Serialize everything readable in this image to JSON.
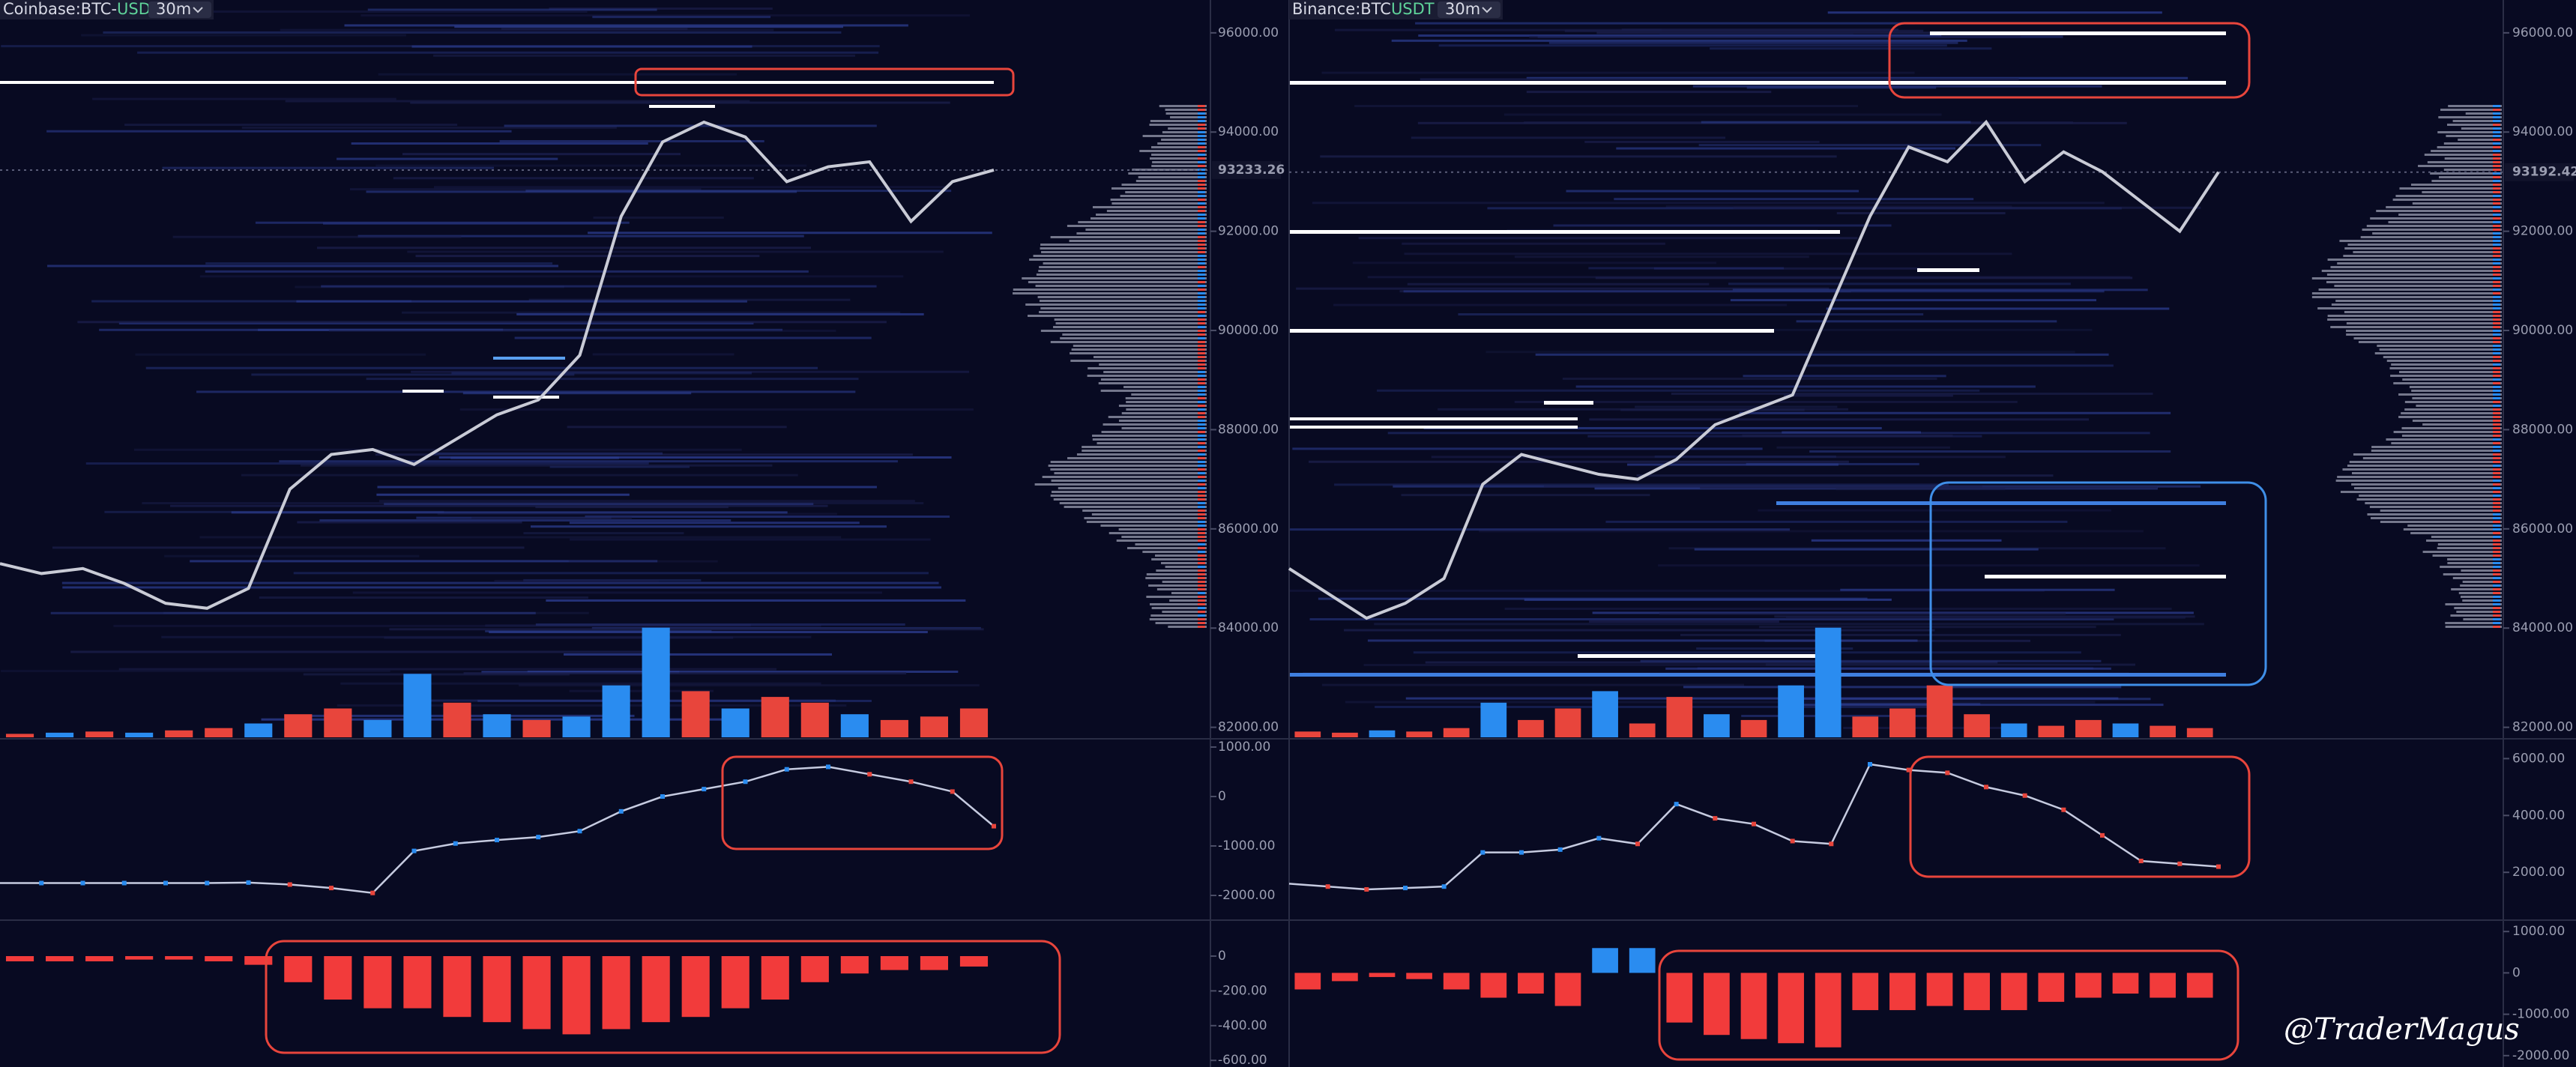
{
  "chart_data": [
    {
      "type": "line",
      "title": "Coinbase:BTC-",
      "title_suffix": "USD",
      "interval": "30m",
      "color": "#c9cbd6",
      "last_price": 93233.26,
      "values": [
        85300,
        85100,
        85200,
        84900,
        84500,
        84400,
        84800,
        86800,
        87500,
        87600,
        87300,
        87800,
        88300,
        88600,
        89500,
        92300,
        93800,
        94200,
        93900,
        93000,
        93300,
        93400,
        92200,
        93000,
        93233.26
      ],
      "ylim": [
        81768,
        96662
      ],
      "yticks": [
        {
          "value": 96000,
          "label": "96000.00"
        },
        {
          "value": 94000,
          "label": "94000.00"
        },
        {
          "value": 92000,
          "label": "92000.00"
        },
        {
          "value": 90000,
          "label": "90000.00"
        },
        {
          "value": 88000,
          "label": "88000.00"
        },
        {
          "value": 86000,
          "label": "86000.00"
        },
        {
          "value": 84000,
          "label": "84000.00"
        },
        {
          "value": 82000,
          "label": "82000.00"
        }
      ]
    },
    {
      "type": "bar",
      "values": [
        3,
        4,
        5,
        4,
        6,
        8,
        12,
        20,
        25,
        15,
        55,
        30,
        20,
        15,
        18,
        45,
        95,
        40,
        25,
        35,
        30,
        20,
        15,
        18,
        25
      ],
      "ylim": [
        0,
        100
      ],
      "colors": [
        "#e8453c",
        "#2a8cf0",
        "#e8453c",
        "#2a8cf0",
        "#e8453c",
        "#e8453c",
        "#2a8cf0",
        "#e8453c",
        "#e8453c",
        "#2a8cf0",
        "#2a8cf0",
        "#e8453c",
        "#2a8cf0",
        "#e8453c",
        "#2a8cf0",
        "#2a8cf0",
        "#2a8cf0",
        "#e8453c",
        "#2a8cf0",
        "#e8453c",
        "#e8453c",
        "#2a8cf0",
        "#e8453c",
        "#e8453c",
        "#e8453c"
      ]
    },
    {
      "type": "line",
      "color": "#c6cbe0",
      "values": [
        -1750,
        -1750,
        -1750,
        -1750,
        -1750,
        -1750,
        -1740,
        -1780,
        -1850,
        -1950,
        -1100,
        -950,
        -880,
        -820,
        -700,
        -300,
        0,
        150,
        300,
        550,
        600,
        450,
        300,
        100,
        -600
      ],
      "ylim": [
        -2500,
        1167
      ],
      "yticks": [
        {
          "value": 1000,
          "label": "1000.00"
        },
        0,
        {
          "value": -1000,
          "label": "-1000.00"
        },
        {
          "value": -2000,
          "label": "-2000.00"
        }
      ]
    },
    {
      "type": "bar",
      "color": "#2a8cf0",
      "negative_color": "#f23b3b",
      "values": [
        -30,
        -30,
        -30,
        -20,
        -20,
        -30,
        -50,
        -150,
        -250,
        -300,
        -300,
        -350,
        -380,
        -420,
        -450,
        -420,
        -380,
        -350,
        -300,
        -250,
        -150,
        -100,
        -80,
        -80,
        -60
      ],
      "ylim": [
        -638,
        207
      ],
      "yticks": [
        0,
        {
          "value": -200,
          "label": "-200.00"
        },
        {
          "value": -400,
          "label": "-400.00"
        },
        {
          "value": -600,
          "label": "-600.00"
        }
      ]
    },
    {
      "type": "line",
      "title": "Binance:BTC",
      "title_suffix": "USDT",
      "interval": "30m",
      "color": "#c9cbd6",
      "last_price": 93192.42,
      "values": [
        85200,
        84700,
        84200,
        84500,
        85000,
        86900,
        87500,
        87300,
        87100,
        87000,
        87400,
        88100,
        88400,
        88700,
        90500,
        92300,
        93700,
        93400,
        94200,
        93000,
        93600,
        93200,
        92600,
        92000,
        93192.42
      ],
      "ylim": [
        81768,
        96662
      ],
      "yticks": [
        {
          "value": 96000,
          "label": "96000.00"
        },
        {
          "value": 94000,
          "label": "94000.00"
        },
        {
          "value": 92000,
          "label": "92000.00"
        },
        {
          "value": 90000,
          "label": "90000.00"
        },
        {
          "value": 88000,
          "label": "88000.00"
        },
        {
          "value": 86000,
          "label": "86000.00"
        },
        {
          "value": 84000,
          "label": "84000.00"
        },
        {
          "value": 82000,
          "label": "82000.00"
        }
      ]
    },
    {
      "type": "bar",
      "values": [
        5,
        4,
        6,
        5,
        8,
        30,
        15,
        25,
        40,
        12,
        35,
        20,
        15,
        45,
        95,
        18,
        25,
        45,
        20,
        12,
        10,
        15,
        12,
        10,
        8
      ],
      "ylim": [
        0,
        100
      ],
      "colors": [
        "#e8453c",
        "#e8453c",
        "#2a8cf0",
        "#e8453c",
        "#e8453c",
        "#2a8cf0",
        "#e8453c",
        "#e8453c",
        "#2a8cf0",
        "#e8453c",
        "#e8453c",
        "#2a8cf0",
        "#e8453c",
        "#2a8cf0",
        "#2a8cf0",
        "#e8453c",
        "#e8453c",
        "#e8453c",
        "#e8453c",
        "#2a8cf0",
        "#e8453c",
        "#e8453c",
        "#2a8cf0",
        "#e8453c",
        "#e8453c"
      ]
    },
    {
      "type": "line",
      "color": "#c6cbe0",
      "values": [
        1600,
        1500,
        1400,
        1450,
        1500,
        2700,
        2700,
        2800,
        3200,
        3000,
        4400,
        3900,
        3700,
        3100,
        3000,
        5800,
        5600,
        5500,
        5000,
        4700,
        4200,
        3300,
        2400,
        2300,
        2200
      ],
      "ylim": [
        319,
        6696
      ],
      "yticks": [
        {
          "value": 6000,
          "label": "6000.00"
        },
        {
          "value": 4000,
          "label": "4000.00"
        },
        {
          "value": 2000,
          "label": "2000.00"
        }
      ]
    },
    {
      "type": "bar",
      "color": "#2a8cf0",
      "negative_color": "#f23b3b",
      "values": [
        -400,
        -200,
        -100,
        -150,
        -400,
        -600,
        -500,
        -800,
        600,
        600,
        -1200,
        -1500,
        -1600,
        -1700,
        -1800,
        -900,
        -900,
        -800,
        -900,
        -900,
        -700,
        -600,
        -500,
        -600,
        -600
      ],
      "ylim": [
        -2275,
        1275
      ],
      "yticks": [
        {
          "value": 1000,
          "label": "1000.00"
        },
        0,
        {
          "value": -1000,
          "label": "-1000.00"
        },
        {
          "value": -2000,
          "label": "-2000.00"
        }
      ]
    }
  ],
  "watermark": "@TraderMagus"
}
